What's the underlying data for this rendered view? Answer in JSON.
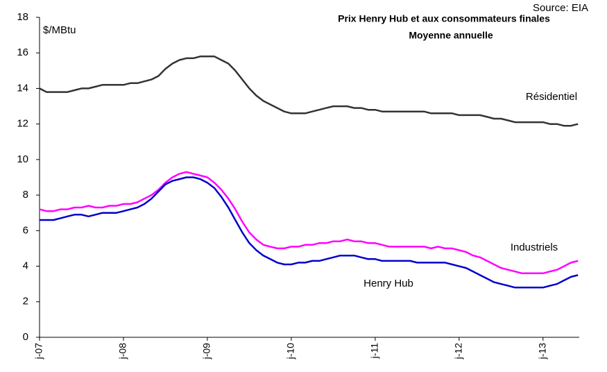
{
  "chart_data": {
    "type": "line",
    "title": "Prix Henry Hub et aux consommateurs finales",
    "subtitle": "Moyenne annuelle",
    "source": "Source: EIA",
    "y_label": "$/MBtu",
    "categories": [
      "j-07",
      null,
      null,
      null,
      null,
      null,
      null,
      null,
      null,
      null,
      null,
      null,
      "j-08",
      null,
      null,
      null,
      null,
      null,
      null,
      null,
      null,
      null,
      null,
      null,
      "j-09",
      null,
      null,
      null,
      null,
      null,
      null,
      null,
      null,
      null,
      null,
      null,
      "j-10",
      null,
      null,
      null,
      null,
      null,
      null,
      null,
      null,
      null,
      null,
      null,
      "j-11",
      null,
      null,
      null,
      null,
      null,
      null,
      null,
      null,
      null,
      null,
      null,
      "j-12",
      null,
      null,
      null,
      null,
      null,
      null,
      null,
      null,
      null,
      null,
      null,
      "j-13",
      null,
      null,
      null,
      null,
      null
    ],
    "ylim": [
      0,
      18
    ],
    "yticks": [
      0,
      2,
      4,
      6,
      8,
      10,
      12,
      14,
      16,
      18
    ],
    "series": [
      {
        "name": "Résidentiel",
        "color": "#333333",
        "values": [
          14.0,
          13.8,
          13.8,
          13.8,
          13.8,
          13.9,
          14.0,
          14.0,
          14.1,
          14.2,
          14.2,
          14.2,
          14.2,
          14.3,
          14.3,
          14.4,
          14.5,
          14.7,
          15.1,
          15.4,
          15.6,
          15.7,
          15.7,
          15.8,
          15.8,
          15.8,
          15.6,
          15.4,
          15.0,
          14.5,
          14.0,
          13.6,
          13.3,
          13.1,
          12.9,
          12.7,
          12.6,
          12.6,
          12.6,
          12.7,
          12.8,
          12.9,
          13.0,
          13.0,
          13.0,
          12.9,
          12.9,
          12.8,
          12.8,
          12.7,
          12.7,
          12.7,
          12.7,
          12.7,
          12.7,
          12.7,
          12.6,
          12.6,
          12.6,
          12.6,
          12.5,
          12.5,
          12.5,
          12.5,
          12.4,
          12.3,
          12.3,
          12.2,
          12.1,
          12.1,
          12.1,
          12.1,
          12.1,
          12.0,
          12.0,
          11.9,
          11.9,
          12.0
        ]
      },
      {
        "name": "Industriels",
        "color": "#ff00ff",
        "values": [
          7.2,
          7.1,
          7.1,
          7.2,
          7.2,
          7.3,
          7.3,
          7.4,
          7.3,
          7.3,
          7.4,
          7.4,
          7.5,
          7.5,
          7.6,
          7.8,
          8.0,
          8.3,
          8.7,
          9.0,
          9.2,
          9.3,
          9.2,
          9.1,
          9.0,
          8.7,
          8.3,
          7.8,
          7.2,
          6.5,
          5.9,
          5.5,
          5.2,
          5.1,
          5.0,
          5.0,
          5.1,
          5.1,
          5.2,
          5.2,
          5.3,
          5.3,
          5.4,
          5.4,
          5.5,
          5.4,
          5.4,
          5.3,
          5.3,
          5.2,
          5.1,
          5.1,
          5.1,
          5.1,
          5.1,
          5.1,
          5.0,
          5.1,
          5.0,
          5.0,
          4.9,
          4.8,
          4.6,
          4.5,
          4.3,
          4.1,
          3.9,
          3.8,
          3.7,
          3.6,
          3.6,
          3.6,
          3.6,
          3.7,
          3.8,
          4.0,
          4.2,
          4.3
        ]
      },
      {
        "name": "Henry Hub",
        "color": "#0000cc",
        "values": [
          6.6,
          6.6,
          6.6,
          6.7,
          6.8,
          6.9,
          6.9,
          6.8,
          6.9,
          7.0,
          7.0,
          7.0,
          7.1,
          7.2,
          7.3,
          7.5,
          7.8,
          8.2,
          8.6,
          8.8,
          8.9,
          9.0,
          9.0,
          8.9,
          8.7,
          8.4,
          7.9,
          7.3,
          6.6,
          5.9,
          5.3,
          4.9,
          4.6,
          4.4,
          4.2,
          4.1,
          4.1,
          4.2,
          4.2,
          4.3,
          4.3,
          4.4,
          4.5,
          4.6,
          4.6,
          4.6,
          4.5,
          4.4,
          4.4,
          4.3,
          4.3,
          4.3,
          4.3,
          4.3,
          4.2,
          4.2,
          4.2,
          4.2,
          4.2,
          4.1,
          4.0,
          3.9,
          3.7,
          3.5,
          3.3,
          3.1,
          3.0,
          2.9,
          2.8,
          2.8,
          2.8,
          2.8,
          2.8,
          2.9,
          3.0,
          3.2,
          3.4,
          3.5
        ]
      }
    ]
  }
}
